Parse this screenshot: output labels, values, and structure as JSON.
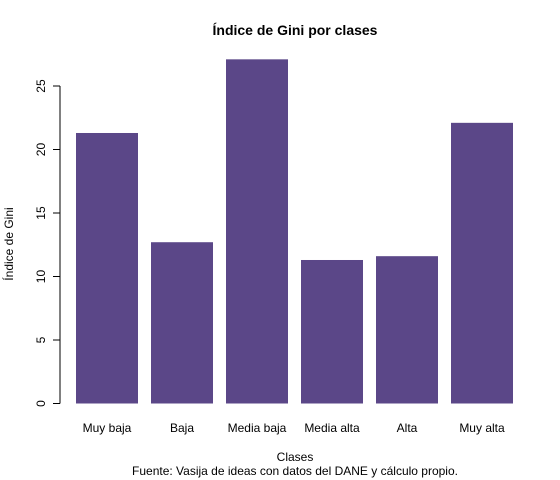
{
  "chart_data": {
    "type": "bar",
    "title": "Índice de Gini por clases",
    "xlabel": "Clases",
    "ylabel": "Índice de Gini",
    "caption": "Fuente: Vasija de ideas con datos del DANE y cálculo propio.",
    "categories": [
      "Muy baja",
      "Baja",
      "Media baja",
      "Media alta",
      "Alta",
      "Muy alta"
    ],
    "values": [
      21.3,
      12.7,
      27.1,
      11.3,
      11.6,
      22.1
    ],
    "ylim": [
      0,
      25
    ],
    "yticks": [
      "0",
      "5",
      "10",
      "15",
      "20",
      "25"
    ],
    "bar_color": "#5b4788",
    "grid": false,
    "legend": "none"
  }
}
